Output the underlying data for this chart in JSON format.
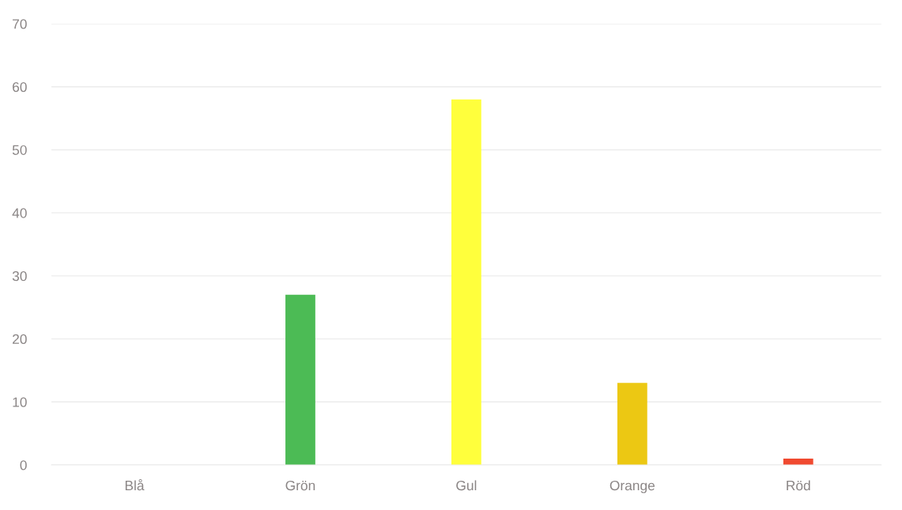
{
  "chart_data": {
    "type": "bar",
    "categories": [
      "Blå",
      "Grön",
      "Gul",
      "Orange",
      "Röd"
    ],
    "values": [
      0,
      27,
      58,
      13,
      1
    ],
    "colors": [
      null,
      "#4cbb55",
      "#ffff3c",
      "#ecc813",
      "#f04a30"
    ],
    "ylim": [
      0,
      70
    ],
    "yticks": [
      0,
      10,
      20,
      30,
      40,
      50,
      60,
      70
    ],
    "grid": "y",
    "legend": false
  }
}
